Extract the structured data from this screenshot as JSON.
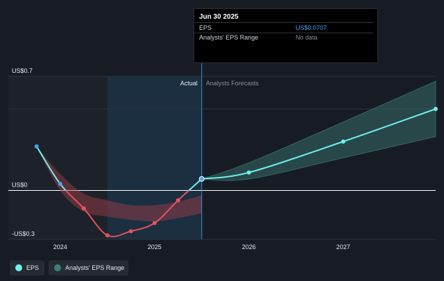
{
  "tooltip": {
    "date": "Jun 30 2025",
    "rows": [
      {
        "label": "EPS",
        "value": "US$0.0707",
        "color": "#4aa3f0"
      },
      {
        "label": "Analysts' EPS Range",
        "value": "No data",
        "color": "#8a8f96"
      }
    ]
  },
  "legend": [
    {
      "label": "EPS",
      "color": "#6ff0ec"
    },
    {
      "label": "Analysts' EPS Range",
      "color": "#3d7d78"
    }
  ],
  "chart_data": {
    "type": "line",
    "y_tick_labels": [
      {
        "value": 0.7,
        "label": "US$0.7"
      },
      {
        "value": 0,
        "label": "US$0"
      },
      {
        "value": -0.3,
        "label": "-US$0.3"
      }
    ],
    "x_tick_labels": [
      {
        "value": 2024,
        "label": "2024"
      },
      {
        "value": 2025,
        "label": "2025"
      },
      {
        "value": 2026,
        "label": "2026"
      },
      {
        "value": 2027,
        "label": "2027"
      }
    ],
    "region_labels": {
      "actual": "Actual",
      "forecast": "Analysts Forecasts"
    },
    "xlim": [
      2023.45,
      2027.98
    ],
    "ylim": [
      -0.3,
      0.7
    ],
    "divider_x": 2025.5,
    "highlight_range": [
      2024.5,
      2025.5
    ],
    "grid": true,
    "legend_position": "bottom-left",
    "series": [
      {
        "name": "EPS",
        "color": "#6ff0ec",
        "negative_color": "#e8505b",
        "points": [
          {
            "x": 2023.75,
            "y": 0.27
          },
          {
            "x": 2024.0,
            "y": 0.04
          },
          {
            "x": 2024.25,
            "y": -0.11
          },
          {
            "x": 2024.5,
            "y": -0.275
          },
          {
            "x": 2024.75,
            "y": -0.25
          },
          {
            "x": 2025.0,
            "y": -0.2
          },
          {
            "x": 2025.25,
            "y": -0.06
          },
          {
            "x": 2025.5,
            "y": 0.0707
          }
        ]
      },
      {
        "name": "Analysts' EPS Range",
        "color": "#6ff0ec",
        "points": [
          {
            "x": 2025.5,
            "y": 0.0707
          },
          {
            "x": 2026.0,
            "y": 0.11
          },
          {
            "x": 2027.0,
            "y": 0.3
          },
          {
            "x": 2027.98,
            "y": 0.5
          }
        ]
      }
    ],
    "forecast_band": [
      {
        "x": 2025.5,
        "low": 0.0707,
        "high": 0.0707
      },
      {
        "x": 2026.0,
        "low": 0.07,
        "high": 0.17
      },
      {
        "x": 2027.0,
        "low": 0.2,
        "high": 0.42
      },
      {
        "x": 2027.98,
        "low": 0.33,
        "high": 0.67
      }
    ],
    "history_band": [
      {
        "x": 2023.75,
        "low": 0.27,
        "high": 0.27
      },
      {
        "x": 2024.0,
        "low": 0.0,
        "high": 0.1
      },
      {
        "x": 2024.25,
        "low": -0.13,
        "high": -0.02
      },
      {
        "x": 2024.5,
        "low": -0.16,
        "high": -0.06
      },
      {
        "x": 2024.75,
        "low": -0.18,
        "high": -0.09
      },
      {
        "x": 2025.0,
        "low": -0.19,
        "high": -0.09
      },
      {
        "x": 2025.25,
        "low": -0.17,
        "high": -0.07
      },
      {
        "x": 2025.5,
        "low": -0.14,
        "high": -0.03
      }
    ]
  }
}
